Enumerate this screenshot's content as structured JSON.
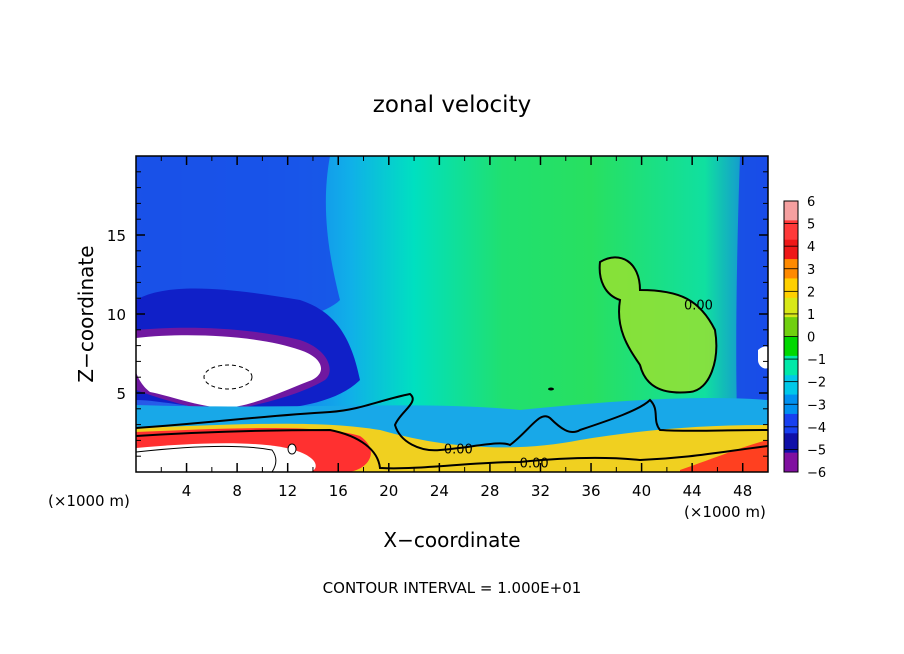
{
  "chart_data": {
    "type": "heatmap",
    "title": "zonal velocity",
    "xlabel": "X−coordinate",
    "ylabel": "Z−coordinate",
    "x_unit_left": "(×1000 m)",
    "x_unit_right": "(×1000 m)",
    "footer": "CONTOUR INTERVAL = 1.000E+01",
    "xlim": [
      0,
      50
    ],
    "ylim": [
      0,
      20
    ],
    "x_ticks": [
      4,
      8,
      12,
      16,
      20,
      24,
      28,
      32,
      36,
      40,
      44,
      48
    ],
    "x_tick_labels": [
      "4",
      "8",
      "12",
      "16",
      "20",
      "24",
      "28",
      "32",
      "36",
      "40",
      "44",
      "48"
    ],
    "y_ticks": [
      5,
      10,
      15
    ],
    "y_tick_labels": [
      "5",
      "10",
      "15"
    ],
    "contour_labels": [
      {
        "text": "0.00",
        "x": 25.5,
        "y": 1.5
      },
      {
        "text": "0.00",
        "x": 44.5,
        "y": 10.6
      },
      {
        "text": "0.00",
        "x": 31.5,
        "y": 0.6
      }
    ],
    "colorbar": {
      "levels": [
        6,
        5,
        4,
        3,
        2,
        1,
        0,
        -1,
        -2,
        -3,
        -4,
        -5,
        -6
      ],
      "labels": [
        "6",
        "5",
        "4",
        "3",
        "2",
        "1",
        "0",
        "−1",
        "−2",
        "−3",
        "−4",
        "−5",
        "−6"
      ],
      "colors": [
        "#f5a0a0",
        "#ff3a3a",
        "#ee1818",
        "#ff8a00",
        "#ffd000",
        "#d8e818",
        "#70d010",
        "#00d800",
        "#00e8a8",
        "#00c8e8",
        "#0090f0",
        "#1840f0",
        "#1010a8",
        "#8010a0"
      ]
    }
  }
}
